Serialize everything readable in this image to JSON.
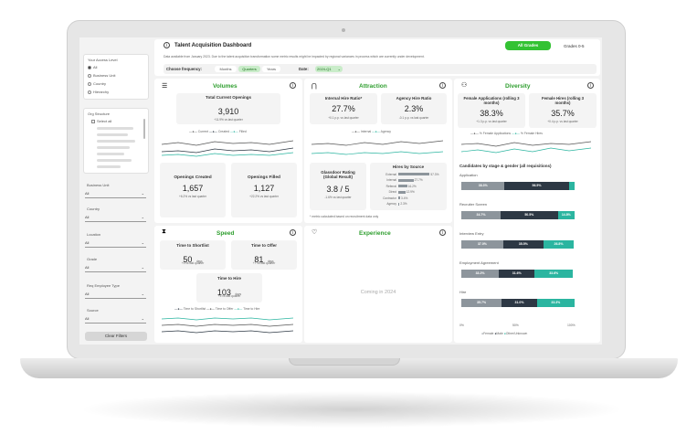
{
  "header": {
    "title": "Talent Acquisition Dashboard",
    "grade_active": "All Grades",
    "grade_other": "Grades 0-5",
    "notice": "Data available from January 2023. Due to the talent acquisition transformation some metric results might be impacted by regional variances in process which are currently under development.",
    "freq_label": "Choose frequency:",
    "freq_options": [
      "Months",
      "Quarters",
      "Years"
    ],
    "date_label": "Date:",
    "date_value": "2024-Q1"
  },
  "sidebar": {
    "access_title": "Your Access Level",
    "access_options": [
      "All",
      "Business Unit",
      "Country",
      "Hierarchy"
    ],
    "org_title": "Org Structure",
    "org_select_all": "Select all",
    "filters": [
      {
        "label": "Business Unit",
        "value": "All"
      },
      {
        "label": "Country",
        "value": "All"
      },
      {
        "label": "Location",
        "value": "All"
      },
      {
        "label": "Grade",
        "value": "All"
      },
      {
        "label": "Req Employee Type",
        "value": "All"
      },
      {
        "label": "Source",
        "value": "All"
      }
    ],
    "clear": "Clear Filters"
  },
  "volumes": {
    "title": "Volumes",
    "total_label": "Total Current Openings",
    "total_value": "3,910",
    "total_change": "+11.9% vs last quarter",
    "legend": [
      "Current",
      "Created",
      "Filled"
    ],
    "created_label": "Openings Created",
    "created_value": "1,657",
    "created_change": "+6.2% vs last quarter",
    "filled_label": "Openings Filled",
    "filled_value": "1,127",
    "filled_change": "+22.2% vs last quarter"
  },
  "attraction": {
    "title": "Attraction",
    "ihr_label": "Internal Hire Ratio*",
    "ihr_value": "27.7%",
    "ihr_change": "+0.1 p.p. vs last quarter",
    "ahr_label": "Agency Hire Ratio",
    "ahr_value": "2.3%",
    "ahr_change": "-0.1 p.p. vs last quarter",
    "legend": [
      "Internal",
      "Agency"
    ],
    "glass_label": "Glassdoor Rating (Global Result)",
    "glass_value": "3.8 / 5",
    "glass_change": "-1.6% vs last quarter",
    "source_title": "Hires by Source",
    "sources": [
      {
        "name": "External",
        "value": 57.3,
        "text": "57.3%"
      },
      {
        "name": "Internal",
        "value": 27.7,
        "text": "27.7%"
      },
      {
        "name": "Referral",
        "value": 16.2,
        "text": "16.2%"
      },
      {
        "name": "Direct",
        "value": 12.9,
        "text": "12.9%"
      },
      {
        "name": "Contractor",
        "value": 3.4,
        "text": "3.4%"
      },
      {
        "name": "Agency",
        "value": 2.3,
        "text": "2.3%"
      }
    ],
    "footnote": "* metric calculated based on recruitment data only"
  },
  "diversity": {
    "title": "Diversity",
    "fa_label": "Female Applications (rolling 3 months)",
    "fa_value": "38.3%",
    "fa_change": "+1.3 p.p. vs last quarter",
    "fh_label": "Female Hires (rolling 3 months)",
    "fh_value": "35.7%",
    "fh_change": "+0.4 p.p. vs last quarter",
    "legend": [
      "% Female Applications",
      "% Female Hires"
    ],
    "stage_title": "Candidates by stage & gender (all requisitions)",
    "stages": [
      {
        "name": "Application",
        "female": 38.3,
        "male": 56.5,
        "other": 5.2,
        "ft": "38.3%",
        "mt": "56.5%",
        "ot": ""
      },
      {
        "name": "Recruiter Screen",
        "female": 34.7,
        "male": 50.5,
        "other": 14.8,
        "ft": "34.7%",
        "mt": "50.5%",
        "ot": "14.8%"
      },
      {
        "name": "Interview Entry",
        "female": 37.0,
        "male": 35.5,
        "other": 26.8,
        "ft": "37.0%",
        "mt": "35.5%",
        "ot": "26.8%"
      },
      {
        "name": "Employment Agreement",
        "female": 33.2,
        "male": 31.6,
        "other": 33.6,
        "ft": "33.2%",
        "mt": "31.6%",
        "ot": "33.6%"
      },
      {
        "name": "Hire",
        "female": 35.7,
        "male": 31.0,
        "other": 33.3,
        "ft": "35.7%",
        "mt": "31.0%",
        "ot": "33.3%"
      }
    ],
    "axis": [
      "0%",
      "50%",
      "100%"
    ],
    "gender_legend": [
      "Female",
      "Male",
      "Other/Unknown"
    ]
  },
  "speed": {
    "title": "Speed",
    "ts_label": "Time to Shortlist",
    "ts_value": "50",
    "ts_unit": "days",
    "ts_change": "+3 vs last quarter",
    "to_label": "Time to Offer",
    "to_value": "81",
    "to_unit": "days",
    "to_change": "+7 vs last quarter",
    "th_label": "Time to Hire",
    "th_value": "103",
    "th_unit": "days",
    "th_change": "+5 vs last quarter",
    "legend": [
      "Time to Shortlist",
      "Time to Offer",
      "Time to Hire"
    ]
  },
  "experience": {
    "title": "Experience",
    "coming": "Coming in 2024"
  },
  "colors": {
    "accent": "#2e9e2e",
    "teal": "#2bb5a0",
    "dark": "#2d3844",
    "gray": "#8d959c"
  }
}
